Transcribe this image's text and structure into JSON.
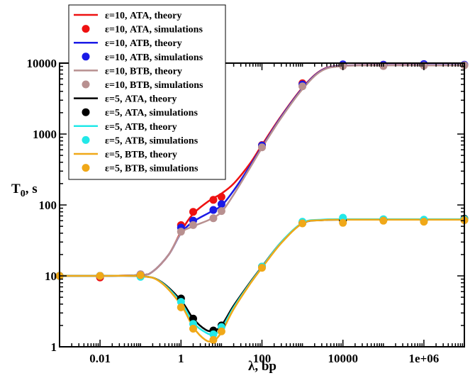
{
  "chart_data": {
    "type": "line",
    "xscale": "log",
    "yscale": "log",
    "xlim": [
      0.001,
      10000000
    ],
    "ylim": [
      1,
      10000
    ],
    "xlabel": "λ, bp",
    "ylabel_main": "T",
    "ylabel_sub": "0",
    "ylabel_suffix": ", s",
    "xticks": [
      0.01,
      1,
      100,
      10000,
      1000000
    ],
    "xtick_labels": [
      "0.01",
      "1",
      "100",
      "10000",
      "1e+06"
    ],
    "yticks": [
      1,
      10,
      100,
      1000,
      10000
    ],
    "ytick_labels": [
      "1",
      "10",
      "100",
      "1000",
      "10000"
    ],
    "grid": false,
    "legend_position": "top-left",
    "series": [
      {
        "name": "ε=10, ATA, theory",
        "kind": "line",
        "color": "#ee1111",
        "x": [
          0.001,
          0.01,
          0.1,
          0.2,
          0.5,
          1,
          2,
          5,
          10,
          20,
          50,
          100,
          300,
          1000,
          3000,
          10000,
          100000,
          1000000,
          10000000
        ],
        "y": [
          10,
          10,
          10.3,
          11.5,
          20,
          42,
          75,
          115,
          145,
          200,
          380,
          700,
          1800,
          4500,
          8000,
          9200,
          9400,
          9400,
          9400
        ]
      },
      {
        "name": "ε=10, ATA, simulations",
        "kind": "points",
        "color": "#ee1111",
        "x": [
          0.001,
          0.01,
          0.1,
          1,
          2,
          6.3,
          10,
          100,
          1000,
          10000,
          100000,
          1000000,
          10000000
        ],
        "y": [
          10,
          9.5,
          10.5,
          52,
          80,
          118,
          130,
          700,
          5200,
          9500,
          9500,
          9600,
          9400
        ]
      },
      {
        "name": "ε=10, ATB, theory",
        "kind": "line",
        "color": "#1a1ae6",
        "x": [
          0.001,
          0.01,
          0.1,
          0.2,
          0.5,
          1,
          2,
          5,
          10,
          20,
          50,
          100,
          300,
          1000,
          3000,
          10000,
          100000,
          1000000,
          10000000
        ],
        "y": [
          10,
          10,
          10.3,
          11.5,
          20,
          40,
          58,
          78,
          98,
          160,
          350,
          660,
          1750,
          4400,
          7900,
          9150,
          9350,
          9350,
          9350
        ]
      },
      {
        "name": "ε=10, ATB, simulations",
        "kind": "points",
        "color": "#1a1ae6",
        "x": [
          0.001,
          0.01,
          0.1,
          1,
          2,
          6.3,
          10,
          100,
          1000,
          10000,
          100000,
          1000000,
          10000000
        ],
        "y": [
          10,
          10,
          10.5,
          48,
          60,
          85,
          103,
          690,
          5000,
          9600,
          9500,
          9700,
          9500
        ]
      },
      {
        "name": "ε=10, BTB, theory",
        "kind": "line",
        "color": "#b89090",
        "x": [
          0.001,
          0.01,
          0.1,
          0.2,
          0.5,
          1,
          2,
          5,
          10,
          20,
          50,
          100,
          300,
          1000,
          3000,
          10000,
          100000,
          1000000,
          10000000
        ],
        "y": [
          10,
          10,
          10.3,
          11.5,
          20,
          40,
          50,
          62,
          80,
          140,
          330,
          640,
          1700,
          4300,
          7800,
          9100,
          9300,
          9300,
          9300
        ]
      },
      {
        "name": "ε=10, BTB, simulations",
        "kind": "points",
        "color": "#b89090",
        "x": [
          0.001,
          0.01,
          0.1,
          1,
          2,
          6.3,
          10,
          100,
          1000,
          10000,
          100000,
          1000000,
          10000000
        ],
        "y": [
          10,
          10,
          10.5,
          42,
          52,
          65,
          82,
          650,
          4700,
          9100,
          9100,
          9200,
          9300
        ]
      },
      {
        "name": "ε=5, ATA, theory",
        "kind": "line",
        "color": "#000000",
        "x": [
          0.001,
          0.01,
          0.1,
          0.3,
          1,
          2,
          4,
          6.3,
          10,
          20,
          50,
          100,
          300,
          1000,
          3000,
          10000,
          100000,
          1000000,
          10000000
        ],
        "y": [
          10,
          10,
          9.9,
          8.5,
          4.5,
          2.5,
          1.75,
          1.68,
          2,
          3.8,
          8,
          13.5,
          30,
          55,
          61,
          62,
          62,
          62,
          62
        ]
      },
      {
        "name": "ε=5, ATA, simulations",
        "kind": "points",
        "color": "#000000",
        "x": [
          0.001,
          0.01,
          0.1,
          1,
          2,
          6.3,
          10,
          100,
          1000,
          10000,
          100000,
          1000000,
          10000000
        ],
        "y": [
          10,
          10,
          10,
          4.8,
          2.5,
          1.7,
          2,
          13.5,
          56,
          60,
          62,
          61,
          64
        ]
      },
      {
        "name": "ε=5, ATB, theory",
        "kind": "line",
        "color": "#22e8e8",
        "x": [
          0.001,
          0.01,
          0.1,
          0.3,
          1,
          2,
          4,
          6.3,
          10,
          20,
          50,
          100,
          300,
          1000,
          3000,
          10000,
          100000,
          1000000,
          10000000
        ],
        "y": [
          10,
          10,
          9.9,
          8.4,
          4.2,
          2.2,
          1.6,
          1.5,
          1.8,
          3.6,
          7.8,
          13.3,
          30,
          56,
          62,
          63,
          63,
          63,
          63
        ]
      },
      {
        "name": "ε=5, ATB, simulations",
        "kind": "points",
        "color": "#22e8e8",
        "x": [
          0.001,
          0.01,
          0.1,
          1,
          2,
          6.3,
          10,
          100,
          1000,
          10000,
          100000,
          1000000,
          10000000
        ],
        "y": [
          10,
          10,
          9.7,
          4.3,
          2.1,
          1.5,
          1.9,
          13.5,
          58,
          66,
          63,
          62,
          63
        ]
      },
      {
        "name": "ε=5, BTB, theory",
        "kind": "line",
        "color": "#f0a818",
        "x": [
          0.001,
          0.01,
          0.1,
          0.3,
          1,
          2,
          4,
          6.3,
          10,
          20,
          50,
          100,
          300,
          1000,
          3000,
          10000,
          100000,
          1000000,
          10000000
        ],
        "y": [
          10,
          10,
          9.9,
          8.3,
          3.9,
          1.9,
          1.25,
          1.22,
          1.6,
          3.4,
          7.6,
          13,
          29,
          55,
          61,
          62,
          62,
          62,
          62
        ]
      },
      {
        "name": "ε=5, BTB, simulations",
        "kind": "points",
        "color": "#f0a818",
        "x": [
          0.001,
          0.01,
          0.1,
          1,
          2,
          6.3,
          10,
          100,
          1000,
          10000,
          100000,
          1000000,
          10000000
        ],
        "y": [
          10,
          10,
          10.2,
          3.6,
          1.8,
          1.25,
          1.65,
          13,
          55,
          56,
          60,
          58,
          61
        ]
      }
    ]
  }
}
